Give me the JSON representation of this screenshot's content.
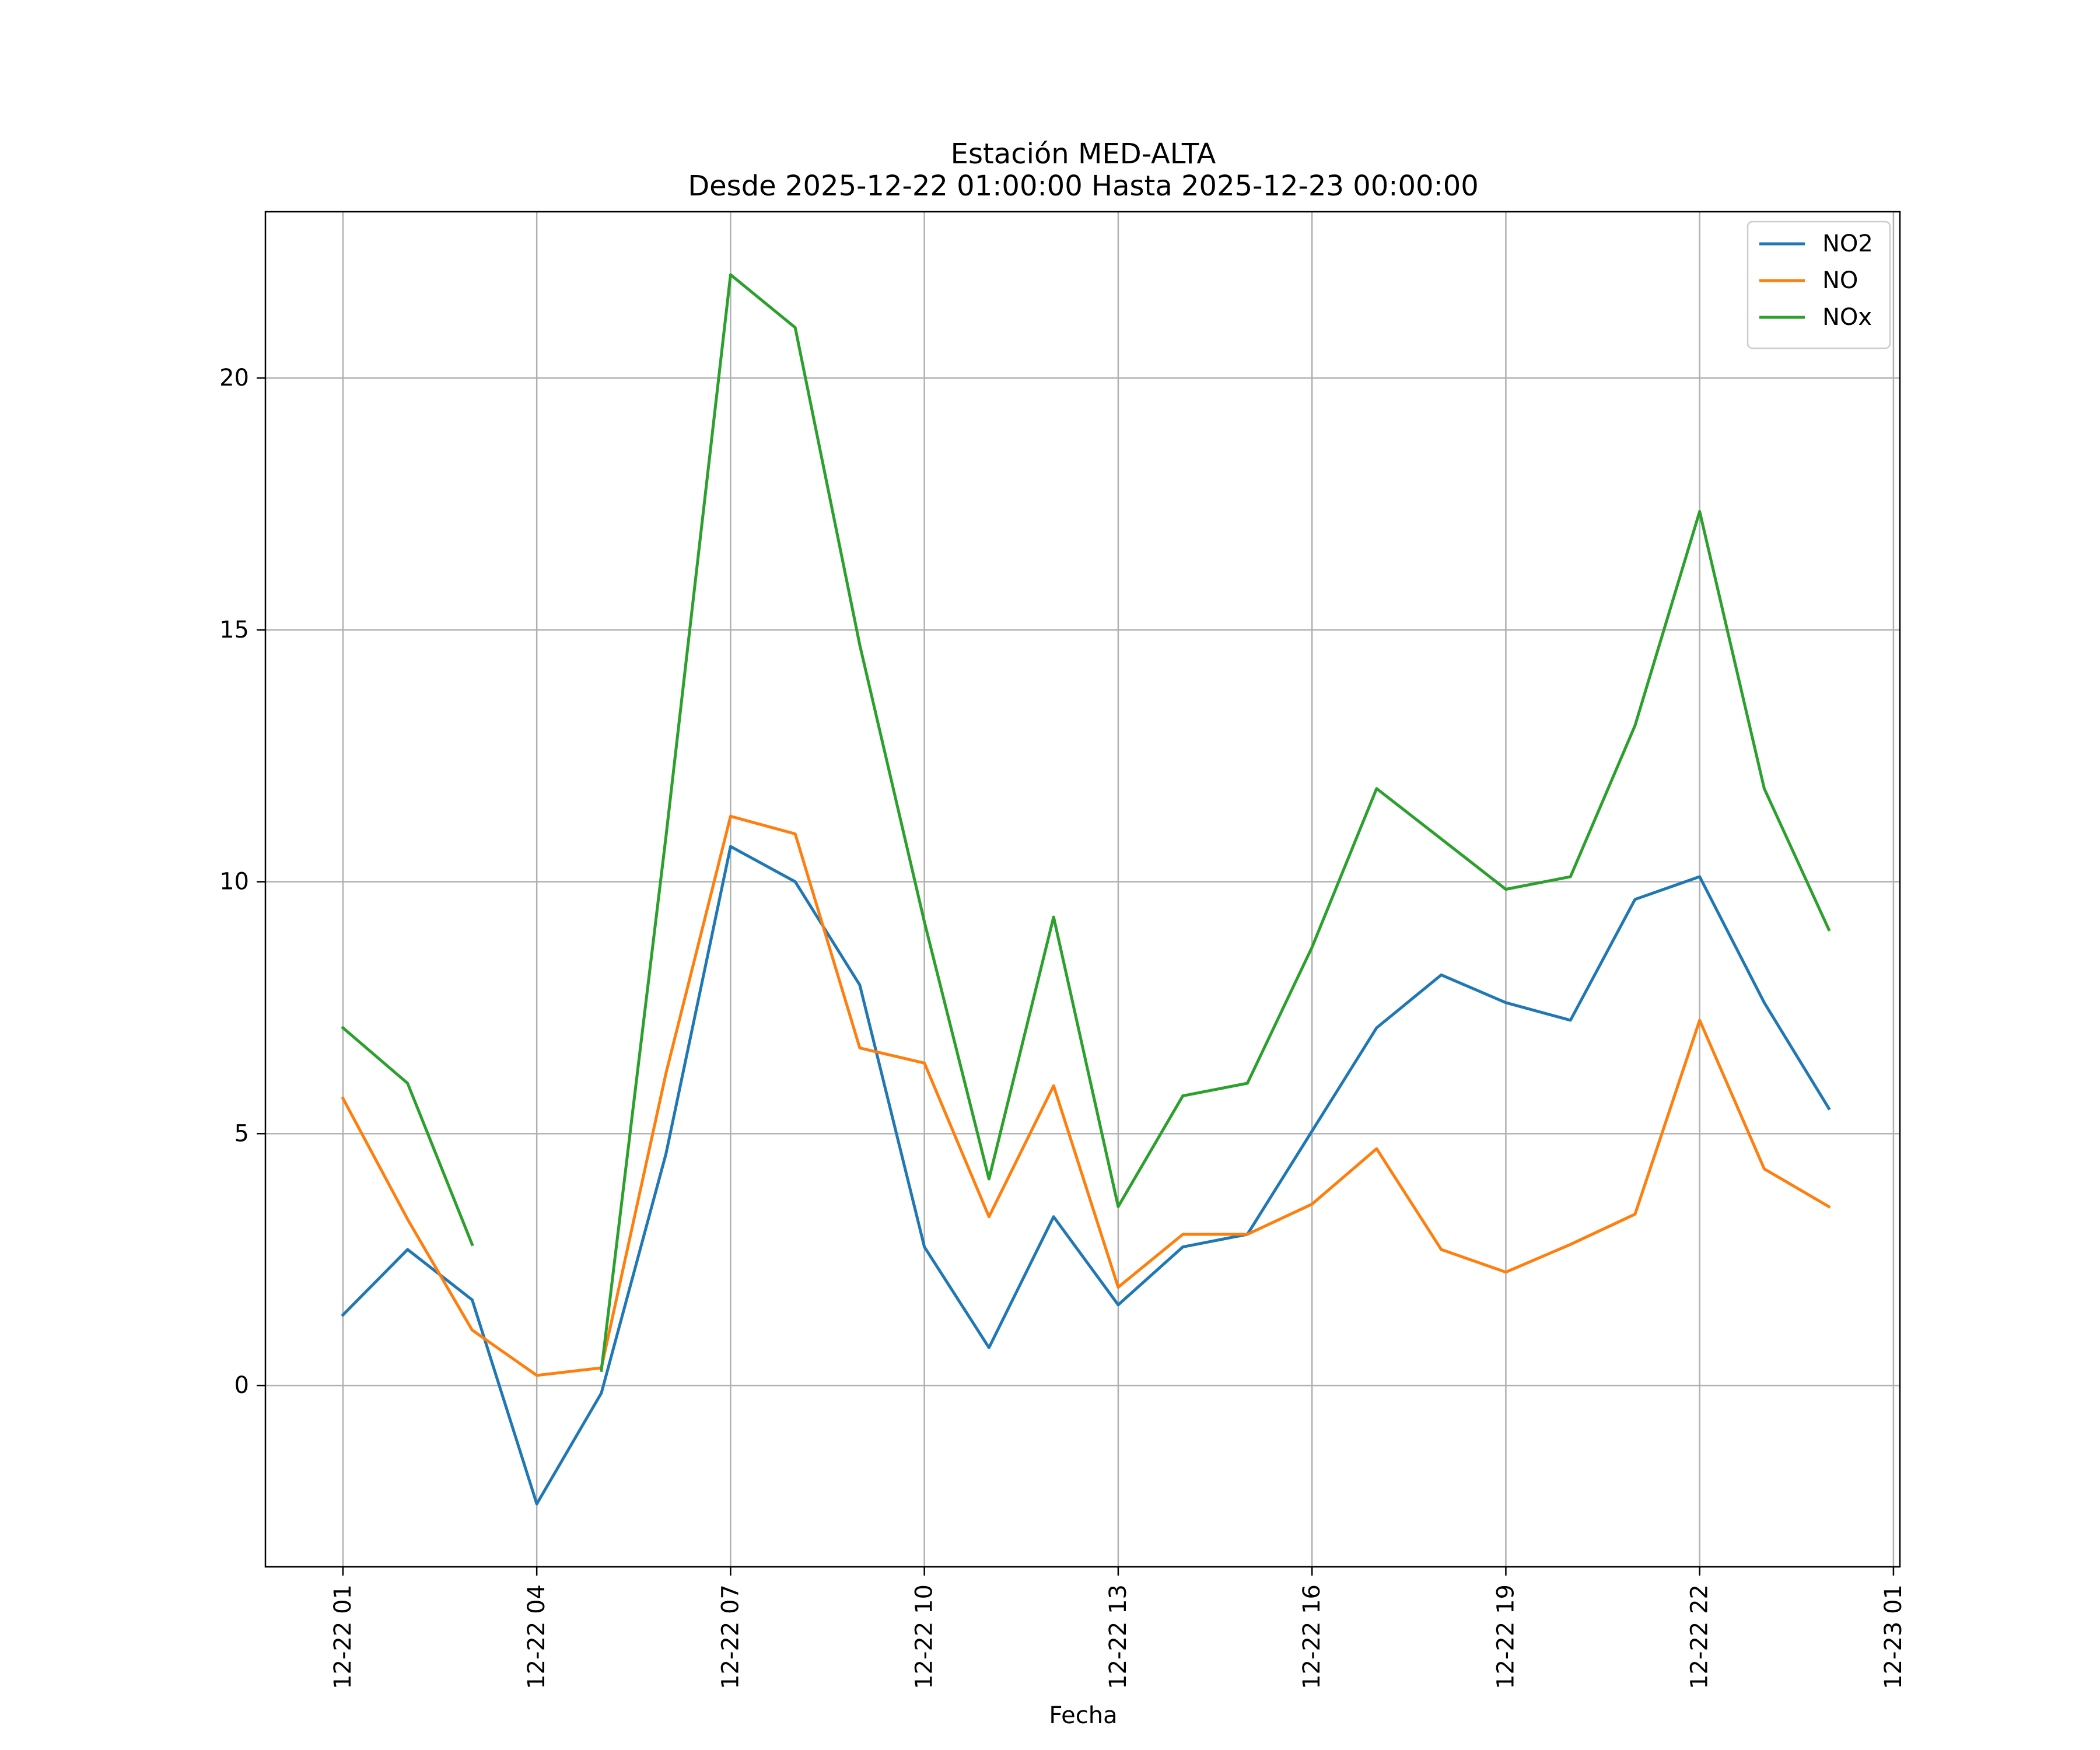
{
  "chart_data": {
    "type": "line",
    "title": "Estación MED-ALTA",
    "subtitle": "Desde 2025-12-22 01:00:00 Hasta 2025-12-23 00:00:00",
    "xlabel": "Fecha",
    "ylabel": "",
    "x_hours": [
      1,
      2,
      3,
      4,
      5,
      6,
      7,
      8,
      9,
      10,
      11,
      12,
      13,
      14,
      15,
      16,
      17,
      18,
      19,
      20,
      21,
      22,
      23,
      24
    ],
    "xlim": [
      -0.2,
      25.1
    ],
    "ylim": [
      -3.6,
      23.3
    ],
    "x_ticks": [
      {
        "hour": 1,
        "label": "12-22 01"
      },
      {
        "hour": 4,
        "label": "12-22 04"
      },
      {
        "hour": 7,
        "label": "12-22 07"
      },
      {
        "hour": 10,
        "label": "12-22 10"
      },
      {
        "hour": 13,
        "label": "12-22 13"
      },
      {
        "hour": 16,
        "label": "12-22 16"
      },
      {
        "hour": 19,
        "label": "12-22 19"
      },
      {
        "hour": 22,
        "label": "12-22 22"
      },
      {
        "hour": 25,
        "label": "12-23 01"
      }
    ],
    "y_ticks": [
      0,
      5,
      10,
      15,
      20
    ],
    "grid": true,
    "legend_position": "top-right",
    "series": [
      {
        "name": "NO2",
        "color": "#1f77b4",
        "values": [
          1.4,
          2.7,
          1.7,
          -2.35,
          -0.15,
          4.6,
          10.7,
          10.0,
          7.95,
          2.75,
          0.75,
          3.35,
          1.6,
          2.75,
          3.0,
          5.05,
          7.1,
          8.15,
          7.6,
          7.25,
          9.65,
          10.1,
          7.6,
          5.5
        ]
      },
      {
        "name": "NO",
        "color": "#ff7f0e",
        "values": [
          5.7,
          3.3,
          1.1,
          0.2,
          0.35,
          6.2,
          11.3,
          10.95,
          6.7,
          6.4,
          3.35,
          5.95,
          1.95,
          3.0,
          3.0,
          3.6,
          4.7,
          2.7,
          2.25,
          2.8,
          3.4,
          7.25,
          4.3,
          3.55
        ]
      },
      {
        "name": "NOx",
        "color": "#2ca02c",
        "values": [
          7.1,
          6.0,
          2.8,
          null,
          0.3,
          10.9,
          22.05,
          21.0,
          14.7,
          9.2,
          4.1,
          9.3,
          3.55,
          5.75,
          6.0,
          8.7,
          11.85,
          10.85,
          9.85,
          10.1,
          13.1,
          17.35,
          11.85,
          9.05
        ]
      }
    ]
  }
}
